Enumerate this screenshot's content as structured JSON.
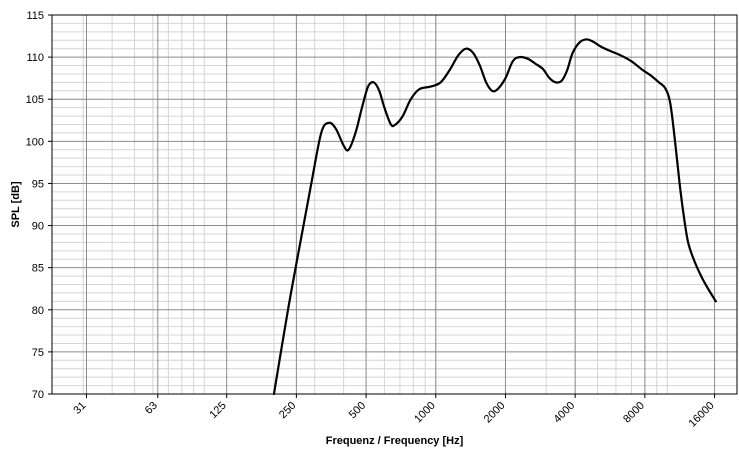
{
  "chart_data": {
    "type": "line",
    "xlabel": "Frequenz / Frequency [Hz]",
    "ylabel": "SPL [dB]",
    "x_scale": "log",
    "xlim": [
      22,
      20000
    ],
    "ylim": [
      70,
      115
    ],
    "grid": true,
    "x_ticks": [
      31,
      63,
      125,
      250,
      500,
      1000,
      2000,
      4000,
      8000,
      16000
    ],
    "x_tick_labels": [
      "31",
      "63",
      "125",
      "250",
      "500",
      "1000",
      "2000",
      "4000",
      "8000",
      "16000"
    ],
    "y_ticks": [
      70,
      75,
      80,
      85,
      90,
      95,
      100,
      105,
      110,
      115
    ],
    "y_tick_labels": [
      "70",
      "75",
      "80",
      "85",
      "90",
      "95",
      "100",
      "105",
      "110",
      "115"
    ],
    "series": [
      {
        "color": "#000000",
        "points": [
          [
            200,
            70
          ],
          [
            230,
            80
          ],
          [
            260,
            88
          ],
          [
            290,
            95
          ],
          [
            320,
            101
          ],
          [
            345,
            102.2
          ],
          [
            370,
            101.5
          ],
          [
            400,
            99.5
          ],
          [
            420,
            99
          ],
          [
            450,
            101
          ],
          [
            480,
            104
          ],
          [
            510,
            106.5
          ],
          [
            540,
            107
          ],
          [
            570,
            106
          ],
          [
            600,
            104
          ],
          [
            640,
            102
          ],
          [
            670,
            102
          ],
          [
            720,
            103
          ],
          [
            780,
            105
          ],
          [
            850,
            106.2
          ],
          [
            950,
            106.5
          ],
          [
            1050,
            107
          ],
          [
            1150,
            108.5
          ],
          [
            1250,
            110.2
          ],
          [
            1350,
            111
          ],
          [
            1450,
            110.5
          ],
          [
            1550,
            109
          ],
          [
            1650,
            107
          ],
          [
            1750,
            106
          ],
          [
            1850,
            106.2
          ],
          [
            2000,
            107.5
          ],
          [
            2150,
            109.5
          ],
          [
            2300,
            110
          ],
          [
            2500,
            109.8
          ],
          [
            2700,
            109.2
          ],
          [
            2900,
            108.6
          ],
          [
            3100,
            107.5
          ],
          [
            3300,
            107
          ],
          [
            3500,
            107.2
          ],
          [
            3700,
            108.5
          ],
          [
            3900,
            110.5
          ],
          [
            4200,
            111.8
          ],
          [
            4500,
            112.1
          ],
          [
            4800,
            111.8
          ],
          [
            5200,
            111.2
          ],
          [
            5700,
            110.7
          ],
          [
            6300,
            110.2
          ],
          [
            7000,
            109.5
          ],
          [
            7800,
            108.5
          ],
          [
            8500,
            107.8
          ],
          [
            9200,
            107
          ],
          [
            9800,
            106.3
          ],
          [
            10300,
            104.5
          ],
          [
            10800,
            100
          ],
          [
            11300,
            95
          ],
          [
            11800,
            91
          ],
          [
            12300,
            88
          ],
          [
            13000,
            86
          ],
          [
            14000,
            84
          ],
          [
            15000,
            82.5
          ],
          [
            16200,
            81
          ]
        ]
      }
    ]
  }
}
